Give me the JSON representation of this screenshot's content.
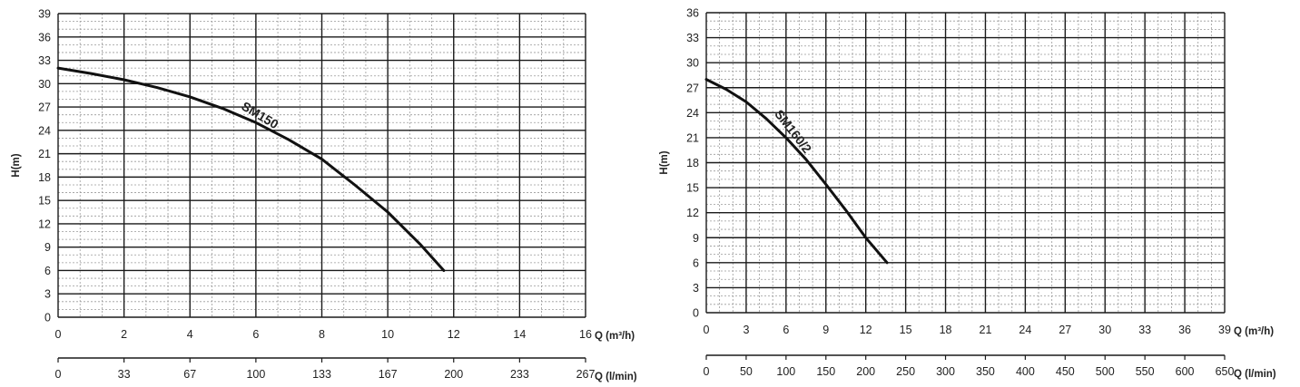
{
  "chart_data": [
    {
      "type": "line",
      "ylabel": "H(m)",
      "xlabel": "Q (m³/h)",
      "xlabel_secondary": "Q (l/min)",
      "xlim": [
        0,
        16
      ],
      "ylim": [
        0,
        39
      ],
      "x_ticks": [
        "0",
        "2",
        "4",
        "6",
        "8",
        "10",
        "12",
        "14",
        "16"
      ],
      "x_ticks_secondary": [
        "0",
        "33",
        "67",
        "100",
        "133",
        "167",
        "200",
        "233",
        "267"
      ],
      "y_ticks": [
        "0",
        "3",
        "6",
        "9",
        "12",
        "15",
        "18",
        "21",
        "24",
        "27",
        "30",
        "33",
        "36",
        "39"
      ],
      "grid": true,
      "series": [
        {
          "name": "SM150",
          "x": [
            0,
            1,
            2,
            3,
            4,
            5,
            6,
            7,
            8,
            9,
            10,
            11,
            11.7
          ],
          "y": [
            32,
            31.3,
            30.5,
            29.5,
            28.3,
            26.8,
            25,
            22.8,
            20.3,
            17,
            13.5,
            9.3,
            6
          ]
        }
      ]
    },
    {
      "type": "line",
      "ylabel": "H(m)",
      "xlabel": "Q (m³/h)",
      "xlabel_secondary": "Q (l/min)",
      "xlim": [
        0,
        39
      ],
      "ylim": [
        0,
        36
      ],
      "x_ticks": [
        "0",
        "3",
        "6",
        "9",
        "12",
        "15",
        "18",
        "21",
        "24",
        "27",
        "30",
        "33",
        "36",
        "39"
      ],
      "x_ticks_secondary": [
        "0",
        "50",
        "100",
        "150",
        "200",
        "250",
        "300",
        "350",
        "400",
        "450",
        "500",
        "550",
        "600",
        "650"
      ],
      "y_ticks": [
        "0",
        "3",
        "6",
        "9",
        "12",
        "15",
        "18",
        "21",
        "24",
        "27",
        "30",
        "33",
        "36"
      ],
      "grid": true,
      "series": [
        {
          "name": "SM160/2",
          "x": [
            0,
            1.5,
            3,
            4.5,
            6,
            7.5,
            9,
            10.5,
            12,
            13.6
          ],
          "y": [
            28,
            26.8,
            25.3,
            23.3,
            21,
            18.4,
            15.4,
            12.3,
            9,
            6
          ]
        }
      ]
    }
  ]
}
